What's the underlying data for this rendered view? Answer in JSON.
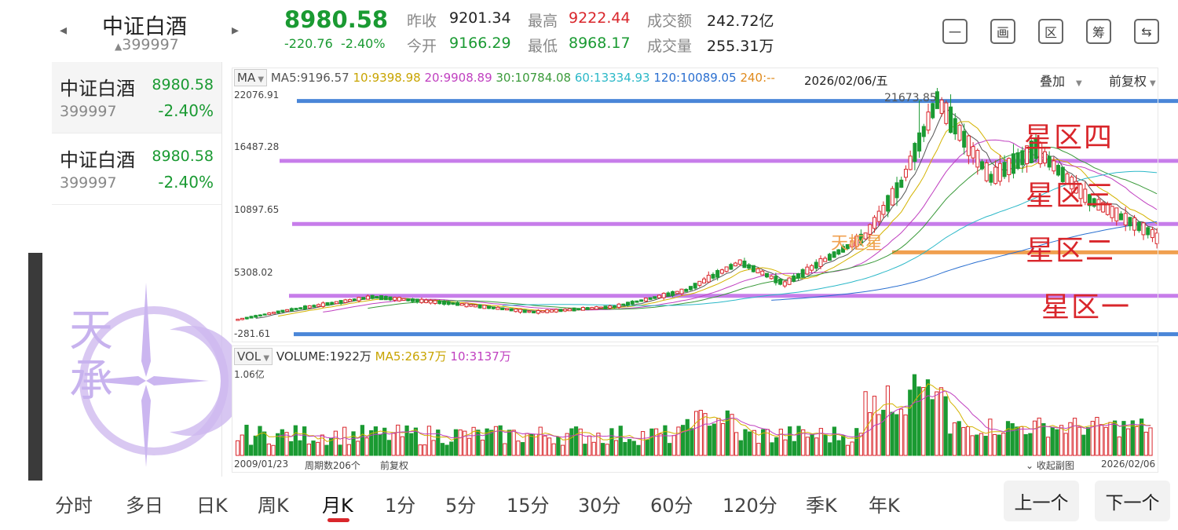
{
  "header": {
    "title": "中证白酒",
    "code": "399997",
    "price": "8980.58",
    "change": "-220.76",
    "change_pct": "-2.40%",
    "quotes": [
      {
        "label": "昨收",
        "value": "9201.34",
        "color": "#222222"
      },
      {
        "label": "最高",
        "value": "9222.44",
        "color": "#d9262b"
      },
      {
        "label": "成交额",
        "value": "242.72亿",
        "color": "#222222"
      },
      {
        "label": "今开",
        "value": "9166.29",
        "color": "#1a9a32"
      },
      {
        "label": "最低",
        "value": "8968.17",
        "color": "#1a9a32"
      },
      {
        "label": "成交量",
        "value": "255.31万",
        "color": "#222222"
      }
    ],
    "toolbar": [
      {
        "icon": "minus-icon",
        "glyph": "一"
      },
      {
        "icon": "chart-frame-icon",
        "glyph": "画"
      },
      {
        "icon": "zone-icon",
        "glyph": "区"
      },
      {
        "icon": "chips-icon",
        "glyph": "筹"
      },
      {
        "icon": "rotate-screen-icon",
        "glyph": "⇆"
      }
    ]
  },
  "list": [
    {
      "name": "中证白酒",
      "code": "399997",
      "price": "8980.58",
      "pct": "-2.40%"
    },
    {
      "name": "中证白酒",
      "code": "399997",
      "price": "8980.58",
      "pct": "-2.40%"
    }
  ],
  "ma_bar": {
    "btn": "MA",
    "ma5": "MA5:9196.57",
    "ma10": "10:9398.98",
    "ma20": "20:9908.89",
    "ma30": "30:10784.08",
    "ma60": "60:13334.93",
    "ma120": "120:10089.05",
    "ma240": "240:--",
    "date": "2026/02/06/五",
    "overlay": "叠加",
    "adjust": "前复权"
  },
  "vol_bar": {
    "btn": "VOL",
    "volume": "VOLUME:1922万",
    "ma5": "MA5:2637万",
    "ma10": "10:3137万"
  },
  "vol_axis": "1.06亿",
  "footer": {
    "start": "2009/01/23",
    "periods": "周期数206个",
    "adjust": "前复权",
    "collapse": "收起副图",
    "end": "2026/02/06"
  },
  "annotations": {
    "zone4": "星区四",
    "zone3": "星区三",
    "zone2": "星区二",
    "zone1": "星区一",
    "pivot": "天枢星",
    "peak": "21673.85"
  },
  "watermark": "天承",
  "tabs": [
    "分时",
    "多日",
    "日K",
    "周K",
    "月K",
    "1分",
    "5分",
    "15分",
    "30分",
    "60分",
    "120分",
    "季K",
    "年K"
  ],
  "active_tab": "月K",
  "nav": {
    "prev": "上一个",
    "next": "下一个"
  },
  "colors": {
    "up": "#d9262b",
    "down": "#1a9a32",
    "ma5": "#555555",
    "ma10": "#d4b300",
    "ma20": "#c040c0",
    "ma30": "#3a9a3a",
    "ma60": "#2bb8c8",
    "ma120": "#2a6fd0",
    "ma240": "#e08a1c",
    "zone_line": "#c77dea",
    "blue_line": "#4a86d8",
    "orange_line": "#f0a050"
  },
  "chart_data": {
    "type": "candlestick",
    "y_axis_ticks": [
      22076.91,
      16487.28,
      10897.65,
      5308.02,
      -281.61
    ],
    "ylim": [
      -281.61,
      22076.91
    ],
    "x_range": [
      "2009/01/23",
      "2026/02/06"
    ],
    "periods": 206,
    "segments": [
      {
        "from": 0,
        "to": 10,
        "start": 1500,
        "end": 2300
      },
      {
        "from": 10,
        "to": 30,
        "start": 2300,
        "end": 3600
      },
      {
        "from": 30,
        "to": 48,
        "start": 3600,
        "end": 3000
      },
      {
        "from": 48,
        "to": 66,
        "start": 3000,
        "end": 2200
      },
      {
        "from": 66,
        "to": 84,
        "start": 2200,
        "end": 2700
      },
      {
        "from": 84,
        "to": 100,
        "start": 2700,
        "end": 4200
      },
      {
        "from": 100,
        "to": 112,
        "start": 4200,
        "end": 6800
      },
      {
        "from": 112,
        "to": 122,
        "start": 6800,
        "end": 4800
      },
      {
        "from": 122,
        "to": 140,
        "start": 4800,
        "end": 9200
      },
      {
        "from": 140,
        "to": 148,
        "start": 9200,
        "end": 14000
      },
      {
        "from": 148,
        "to": 156,
        "start": 14000,
        "end": 21673.85
      },
      {
        "from": 156,
        "to": 168,
        "start": 21673.85,
        "end": 14500
      },
      {
        "from": 168,
        "to": 178,
        "start": 14500,
        "end": 17200
      },
      {
        "from": 178,
        "to": 190,
        "start": 17200,
        "end": 12500
      },
      {
        "from": 190,
        "to": 206,
        "start": 12500,
        "end": 8980.58
      }
    ],
    "last_close": 8980.58,
    "peak": 21673.85,
    "horizontal_lines": [
      {
        "y": 21600,
        "color": "#4a86d8"
      },
      {
        "y": 16100,
        "color": "#c77dea"
      },
      {
        "y": 10300,
        "color": "#c77dea"
      },
      {
        "y": 3700,
        "color": "#c77dea"
      },
      {
        "y": 180,
        "color": "#4a86d8"
      },
      {
        "y": 7700,
        "color": "#f0a050"
      }
    ],
    "volume_max": "1.06亿"
  }
}
